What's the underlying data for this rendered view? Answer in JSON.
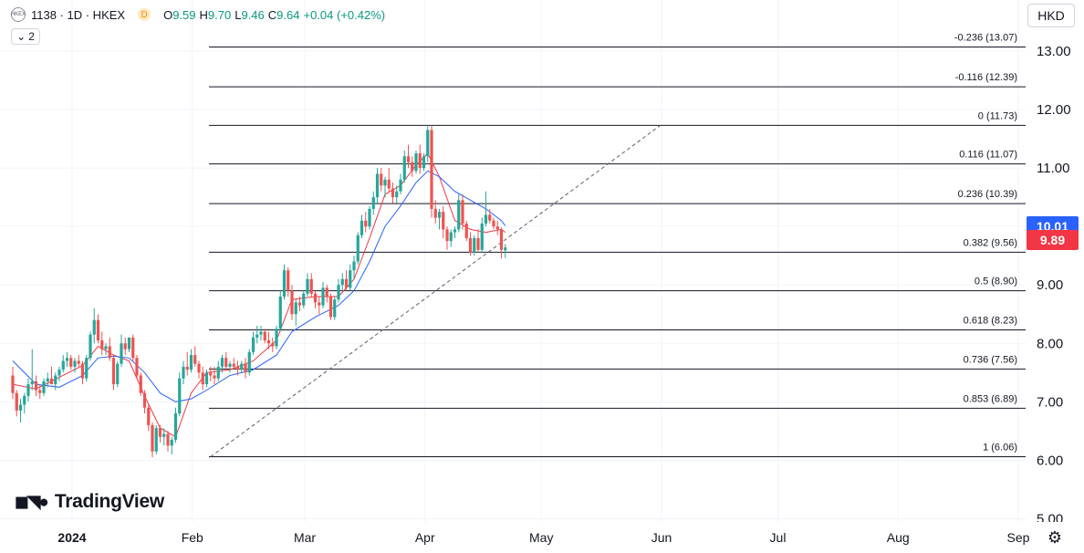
{
  "header": {
    "symbol_icon": "exchange-logo-icon",
    "title": "1138 · 1D · HKEX",
    "interval_badge": "D",
    "ohlc": [
      {
        "k": "O",
        "v": "9.59"
      },
      {
        "k": "H",
        "v": "9.70"
      },
      {
        "k": "L",
        "v": "9.46"
      },
      {
        "k": "C",
        "v": "9.64"
      }
    ],
    "change": "+0.04 (+0.42%)",
    "indicators_toggle": "2",
    "currency": "HKD"
  },
  "price_tags": {
    "ma_value": "10.01",
    "last_price": "9.89"
  },
  "colors": {
    "up": "#26a69a",
    "down": "#ef5350",
    "ma_fast": "#f23645",
    "ma_slow": "#2962ff",
    "fib_line": "#131722",
    "grid": "#f0f3fa",
    "axis_text": "#131722",
    "ma_tag_bg": "#2962ff",
    "last_tag_bg": "#f23645"
  },
  "logo": {
    "icon": "tradingview-logo-icon",
    "text": "TradingView"
  },
  "settings_icon": "gear-icon",
  "chart_data": {
    "type": "candlestick",
    "y_axis": {
      "ticks": [
        "13.00",
        "12.00",
        "11.00",
        "10.00",
        "9.00",
        "8.00",
        "7.00",
        "6.00",
        "5.00"
      ],
      "range": [
        5.0,
        13.5
      ]
    },
    "x_axis": {
      "ticks": [
        {
          "label": "2024",
          "day": 0
        },
        {
          "label": "Feb",
          "day": 31
        },
        {
          "label": "Mar",
          "day": 60
        },
        {
          "label": "Apr",
          "day": 91
        },
        {
          "label": "May",
          "day": 121
        },
        {
          "label": "Jun",
          "day": 152
        },
        {
          "label": "Jul",
          "day": 182
        },
        {
          "label": "Aug",
          "day": 213
        },
        {
          "label": "Sep",
          "day": 244
        }
      ]
    },
    "fibonacci": [
      {
        "label": "-0.236 (13.07)",
        "price": 13.07
      },
      {
        "label": "-0.116 (12.39)",
        "price": 12.39
      },
      {
        "label": "0 (11.73)",
        "price": 11.73
      },
      {
        "label": "0.116 (11.07)",
        "price": 11.07
      },
      {
        "label": "0.236 (10.39)",
        "price": 10.39
      },
      {
        "label": "0.382 (9.56)",
        "price": 9.56
      },
      {
        "label": "0.5 (8.90)",
        "price": 8.9
      },
      {
        "label": "0.618 (8.23)",
        "price": 8.23
      },
      {
        "label": "0.736 (7.56)",
        "price": 7.56
      },
      {
        "label": "0.853 (6.89)",
        "price": 6.89
      },
      {
        "label": "1 (6.06)",
        "price": 6.06
      }
    ],
    "trendline": [
      {
        "day": 39,
        "price": 6.06
      },
      {
        "day": 155,
        "price": 11.73
      }
    ],
    "candles": [
      [
        -12,
        7.45,
        7.6,
        7.05,
        7.15
      ],
      [
        -11,
        7.15,
        7.2,
        6.75,
        6.85
      ],
      [
        -10,
        6.85,
        7.05,
        6.65,
        6.95
      ],
      [
        -9,
        6.95,
        7.15,
        6.8,
        7.1
      ],
      [
        -8,
        7.1,
        7.4,
        7.0,
        7.3
      ],
      [
        -7,
        7.3,
        7.9,
        7.2,
        7.35
      ],
      [
        -6,
        7.35,
        7.45,
        7.1,
        7.2
      ],
      [
        -5,
        7.2,
        7.3,
        7.05,
        7.15
      ],
      [
        -4,
        7.15,
        7.4,
        7.1,
        7.35
      ],
      [
        -3,
        7.35,
        7.5,
        7.25,
        7.4
      ],
      [
        -2,
        7.4,
        7.6,
        7.3,
        7.3
      ],
      [
        -1,
        7.3,
        7.5,
        7.2,
        7.45
      ],
      [
        0,
        7.45,
        7.6,
        7.35,
        7.55
      ],
      [
        1,
        7.55,
        7.8,
        7.5,
        7.7
      ],
      [
        2,
        7.7,
        7.85,
        7.6,
        7.75
      ],
      [
        3,
        7.75,
        7.8,
        7.55,
        7.6
      ],
      [
        4,
        7.6,
        7.75,
        7.5,
        7.7
      ],
      [
        5,
        7.7,
        7.8,
        7.6,
        7.65
      ],
      [
        6,
        7.65,
        7.7,
        7.3,
        7.4
      ],
      [
        7,
        7.4,
        7.8,
        7.35,
        7.75
      ],
      [
        8,
        7.75,
        8.2,
        7.7,
        8.15
      ],
      [
        9,
        8.15,
        8.6,
        8.0,
        8.4
      ],
      [
        10,
        8.4,
        8.5,
        8.0,
        8.05
      ],
      [
        11,
        8.05,
        8.2,
        7.8,
        7.9
      ],
      [
        12,
        7.9,
        8.0,
        7.8,
        7.95
      ],
      [
        13,
        7.95,
        8.1,
        7.7,
        7.75
      ],
      [
        14,
        7.75,
        7.8,
        7.2,
        7.3
      ],
      [
        15,
        7.3,
        7.7,
        7.25,
        7.65
      ],
      [
        16,
        7.65,
        8.15,
        7.6,
        8.0
      ],
      [
        17,
        8.0,
        8.1,
        7.8,
        7.9
      ],
      [
        18,
        7.9,
        8.1,
        7.85,
        8.1
      ],
      [
        19,
        8.1,
        8.15,
        7.7,
        7.75
      ],
      [
        20,
        7.75,
        7.8,
        7.4,
        7.45
      ],
      [
        21,
        7.45,
        7.5,
        7.1,
        7.15
      ],
      [
        22,
        7.15,
        7.2,
        6.8,
        6.9
      ],
      [
        23,
        6.9,
        6.95,
        6.5,
        6.6
      ],
      [
        24,
        6.6,
        6.65,
        6.05,
        6.15
      ],
      [
        25,
        6.15,
        6.6,
        6.1,
        6.55
      ],
      [
        26,
        6.55,
        6.6,
        6.3,
        6.4
      ],
      [
        27,
        6.4,
        6.55,
        6.25,
        6.45
      ],
      [
        28,
        6.45,
        6.5,
        6.15,
        6.25
      ],
      [
        29,
        6.25,
        6.4,
        6.1,
        6.35
      ],
      [
        30,
        6.35,
        6.9,
        6.3,
        6.8
      ],
      [
        31,
        6.8,
        7.5,
        6.75,
        7.4
      ],
      [
        32,
        7.4,
        7.7,
        7.3,
        7.6
      ],
      [
        33,
        7.6,
        7.85,
        7.45,
        7.55
      ],
      [
        34,
        7.55,
        7.9,
        7.5,
        7.8
      ],
      [
        35,
        7.8,
        7.95,
        7.6,
        7.65
      ],
      [
        36,
        7.65,
        7.7,
        7.4,
        7.5
      ],
      [
        37,
        7.5,
        7.6,
        7.2,
        7.3
      ],
      [
        38,
        7.3,
        7.55,
        7.25,
        7.5
      ],
      [
        39,
        7.5,
        7.6,
        7.35,
        7.45
      ],
      [
        40,
        7.45,
        7.6,
        7.3,
        7.4
      ],
      [
        41,
        7.4,
        7.7,
        7.35,
        7.6
      ],
      [
        42,
        7.6,
        7.8,
        7.5,
        7.75
      ],
      [
        43,
        7.75,
        7.85,
        7.55,
        7.6
      ],
      [
        44,
        7.6,
        7.7,
        7.5,
        7.65
      ],
      [
        45,
        7.65,
        7.75,
        7.55,
        7.6
      ],
      [
        46,
        7.6,
        7.7,
        7.45,
        7.55
      ],
      [
        47,
        7.55,
        7.7,
        7.5,
        7.65
      ],
      [
        48,
        7.65,
        7.75,
        7.4,
        7.5
      ],
      [
        49,
        7.5,
        7.9,
        7.45,
        7.85
      ],
      [
        50,
        7.85,
        8.2,
        7.8,
        8.1
      ],
      [
        51,
        8.1,
        8.3,
        8.0,
        8.15
      ],
      [
        52,
        8.15,
        8.3,
        8.05,
        8.2
      ],
      [
        53,
        8.2,
        8.25,
        8.0,
        8.05
      ],
      [
        54,
        8.05,
        8.2,
        7.9,
        8.0
      ],
      [
        55,
        8.0,
        8.1,
        7.85,
        7.95
      ],
      [
        56,
        7.95,
        8.3,
        7.9,
        8.25
      ],
      [
        57,
        8.25,
        8.9,
        8.2,
        8.8
      ],
      [
        58,
        8.8,
        9.35,
        8.75,
        9.25
      ],
      [
        59,
        9.25,
        9.3,
        8.8,
        8.9
      ],
      [
        60,
        8.9,
        9.0,
        8.4,
        8.5
      ],
      [
        61,
        8.5,
        8.75,
        8.3,
        8.7
      ],
      [
        62,
        8.7,
        8.8,
        8.55,
        8.65
      ],
      [
        63,
        8.65,
        8.9,
        8.6,
        8.85
      ],
      [
        64,
        8.85,
        9.2,
        8.8,
        9.1
      ],
      [
        65,
        9.1,
        9.2,
        8.8,
        8.85
      ],
      [
        66,
        8.85,
        8.9,
        8.6,
        8.7
      ],
      [
        67,
        8.7,
        8.8,
        8.5,
        8.65
      ],
      [
        68,
        8.65,
        9.05,
        8.6,
        8.95
      ],
      [
        69,
        8.95,
        9.0,
        8.7,
        8.8
      ],
      [
        70,
        8.8,
        8.85,
        8.4,
        8.45
      ],
      [
        71,
        8.45,
        8.8,
        8.4,
        8.75
      ],
      [
        72,
        8.75,
        9.1,
        8.7,
        9.0
      ],
      [
        73,
        9.0,
        9.2,
        8.9,
        9.1
      ],
      [
        74,
        9.1,
        9.25,
        8.9,
        8.95
      ],
      [
        75,
        8.95,
        9.35,
        8.9,
        9.25
      ],
      [
        76,
        9.25,
        9.5,
        9.1,
        9.4
      ],
      [
        77,
        9.4,
        9.9,
        9.35,
        9.85
      ],
      [
        78,
        9.85,
        10.2,
        9.8,
        10.1
      ],
      [
        79,
        10.1,
        10.25,
        9.9,
        10.0
      ],
      [
        80,
        10.0,
        10.35,
        9.95,
        10.3
      ],
      [
        81,
        10.3,
        10.6,
        10.2,
        10.5
      ],
      [
        82,
        10.5,
        11.0,
        10.4,
        10.9
      ],
      [
        83,
        10.9,
        11.0,
        10.6,
        10.7
      ],
      [
        84,
        10.7,
        10.85,
        10.5,
        10.8
      ],
      [
        85,
        10.8,
        11.0,
        10.6,
        10.65
      ],
      [
        86,
        10.65,
        10.75,
        10.4,
        10.5
      ],
      [
        87,
        10.5,
        10.7,
        10.4,
        10.6
      ],
      [
        88,
        10.6,
        10.9,
        10.55,
        10.8
      ],
      [
        89,
        10.8,
        11.3,
        10.75,
        11.2
      ],
      [
        90,
        11.2,
        11.4,
        11.0,
        11.1
      ],
      [
        91,
        11.1,
        11.2,
        10.85,
        10.95
      ],
      [
        92,
        10.95,
        11.3,
        10.9,
        11.25
      ],
      [
        93,
        11.25,
        11.4,
        10.9,
        11.0
      ],
      [
        94,
        11.0,
        11.25,
        10.95,
        11.2
      ],
      [
        95,
        11.2,
        11.73,
        11.1,
        11.65
      ],
      [
        96,
        11.65,
        11.73,
        10.15,
        10.3
      ],
      [
        97,
        10.3,
        10.45,
        10.05,
        10.15
      ],
      [
        98,
        10.15,
        10.3,
        9.95,
        10.25
      ],
      [
        99,
        10.25,
        10.35,
        9.8,
        9.95
      ],
      [
        100,
        9.95,
        10.0,
        9.6,
        9.75
      ],
      [
        101,
        9.75,
        9.95,
        9.65,
        9.9
      ],
      [
        102,
        9.9,
        10.0,
        9.8,
        9.95
      ],
      [
        103,
        9.95,
        10.55,
        9.9,
        10.45
      ],
      [
        104,
        10.45,
        10.55,
        9.95,
        10.05
      ],
      [
        105,
        10.05,
        10.1,
        9.75,
        9.8
      ],
      [
        106,
        9.8,
        9.9,
        9.5,
        9.55
      ],
      [
        107,
        9.55,
        9.85,
        9.5,
        9.8
      ],
      [
        108,
        9.8,
        9.95,
        9.55,
        9.6
      ],
      [
        109,
        9.6,
        10.15,
        9.55,
        10.05
      ],
      [
        110,
        10.05,
        10.6,
        10.0,
        10.2
      ],
      [
        111,
        10.2,
        10.3,
        10.05,
        10.1
      ],
      [
        112,
        10.1,
        10.15,
        9.95,
        10.0
      ],
      [
        113,
        10.0,
        10.1,
        9.85,
        9.95
      ],
      [
        114,
        9.95,
        9.98,
        9.45,
        9.6
      ],
      [
        115,
        9.59,
        9.7,
        9.46,
        9.64
      ]
    ],
    "moving_averages": [
      {
        "name": "MA fast",
        "color": "#f23645",
        "values": [
          [
            -12,
            7.3
          ],
          [
            -6,
            7.22
          ],
          [
            0,
            7.42
          ],
          [
            6,
            7.62
          ],
          [
            10,
            7.95
          ],
          [
            14,
            7.8
          ],
          [
            18,
            7.7
          ],
          [
            22,
            7.1
          ],
          [
            26,
            6.55
          ],
          [
            30,
            6.4
          ],
          [
            34,
            7.15
          ],
          [
            38,
            7.5
          ],
          [
            44,
            7.55
          ],
          [
            50,
            7.7
          ],
          [
            56,
            8.05
          ],
          [
            60,
            8.75
          ],
          [
            66,
            8.8
          ],
          [
            72,
            8.8
          ],
          [
            76,
            9.1
          ],
          [
            80,
            9.8
          ],
          [
            84,
            10.55
          ],
          [
            88,
            10.7
          ],
          [
            92,
            11.05
          ],
          [
            95,
            11.25
          ],
          [
            98,
            10.85
          ],
          [
            102,
            10.1
          ],
          [
            106,
            9.95
          ],
          [
            110,
            9.9
          ],
          [
            114,
            9.95
          ],
          [
            115,
            9.9
          ]
        ]
      },
      {
        "name": "MA slow",
        "color": "#2962ff",
        "values": [
          [
            -12,
            7.7
          ],
          [
            -6,
            7.3
          ],
          [
            0,
            7.25
          ],
          [
            6,
            7.45
          ],
          [
            10,
            7.75
          ],
          [
            14,
            7.78
          ],
          [
            18,
            7.75
          ],
          [
            22,
            7.5
          ],
          [
            26,
            7.15
          ],
          [
            30,
            7.0
          ],
          [
            34,
            7.05
          ],
          [
            38,
            7.2
          ],
          [
            44,
            7.45
          ],
          [
            50,
            7.55
          ],
          [
            56,
            7.8
          ],
          [
            60,
            8.2
          ],
          [
            66,
            8.45
          ],
          [
            72,
            8.65
          ],
          [
            76,
            8.9
          ],
          [
            80,
            9.4
          ],
          [
            84,
            10.0
          ],
          [
            88,
            10.35
          ],
          [
            92,
            10.75
          ],
          [
            95,
            10.95
          ],
          [
            98,
            10.85
          ],
          [
            102,
            10.6
          ],
          [
            106,
            10.45
          ],
          [
            110,
            10.3
          ],
          [
            114,
            10.1
          ],
          [
            115,
            10.01
          ]
        ]
      }
    ]
  }
}
